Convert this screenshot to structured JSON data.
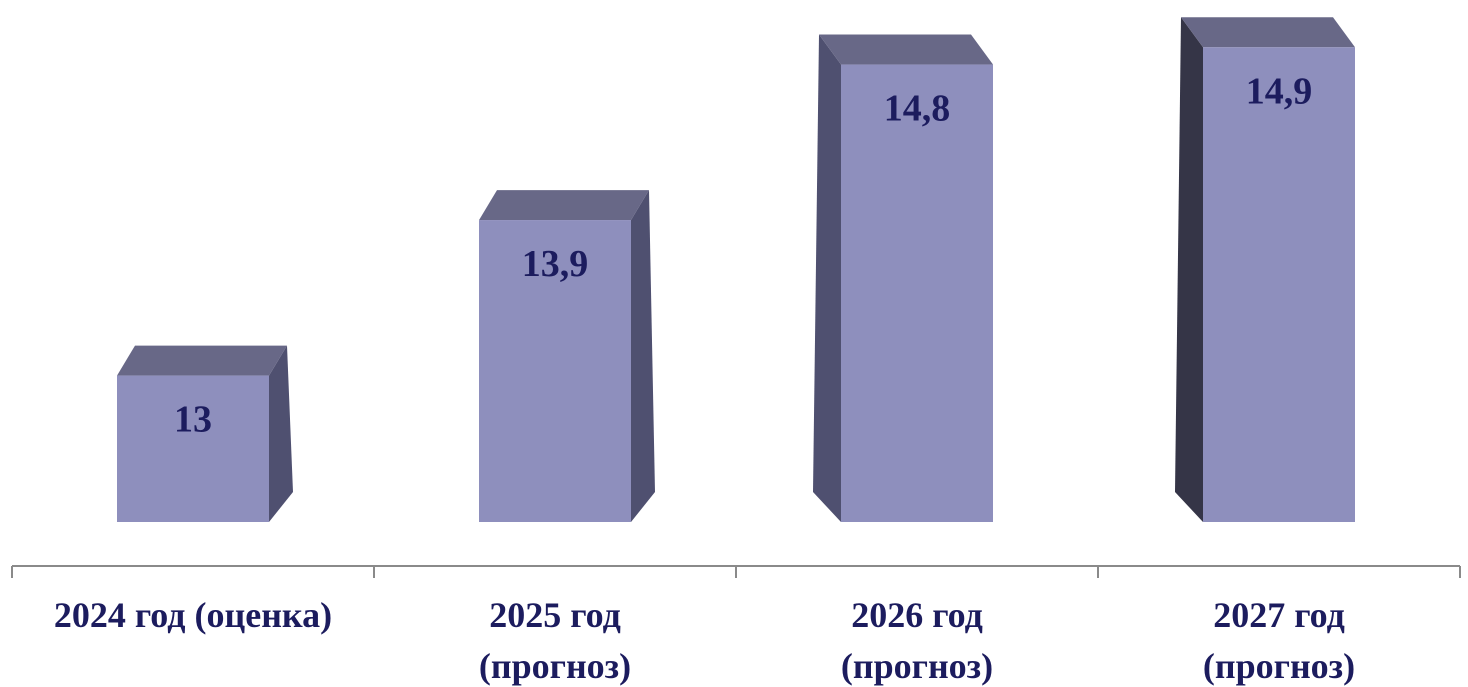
{
  "chart_data": {
    "type": "bar",
    "categories": [
      "2024 год (оценка)",
      "2025 год (прогноз)",
      "2026 год (прогноз)",
      "2027 год (прогноз)"
    ],
    "category_lines": [
      [
        "2024 год (оценка)"
      ],
      [
        "2025 год",
        "(прогноз)"
      ],
      [
        "2026 год",
        "(прогноз)"
      ],
      [
        "2027 год",
        "(прогноз)"
      ]
    ],
    "values": [
      13,
      13.9,
      14.8,
      14.9
    ],
    "value_labels": [
      "13",
      "13,9",
      "14,8",
      "14,9"
    ],
    "three_d": true,
    "grid": false,
    "colors": {
      "front": "#8e8fbd",
      "top": "#686887",
      "side": "#4f5070",
      "side_dark": "#353547",
      "axis": "#8a8a8a",
      "text": "#1c1c5e"
    }
  }
}
